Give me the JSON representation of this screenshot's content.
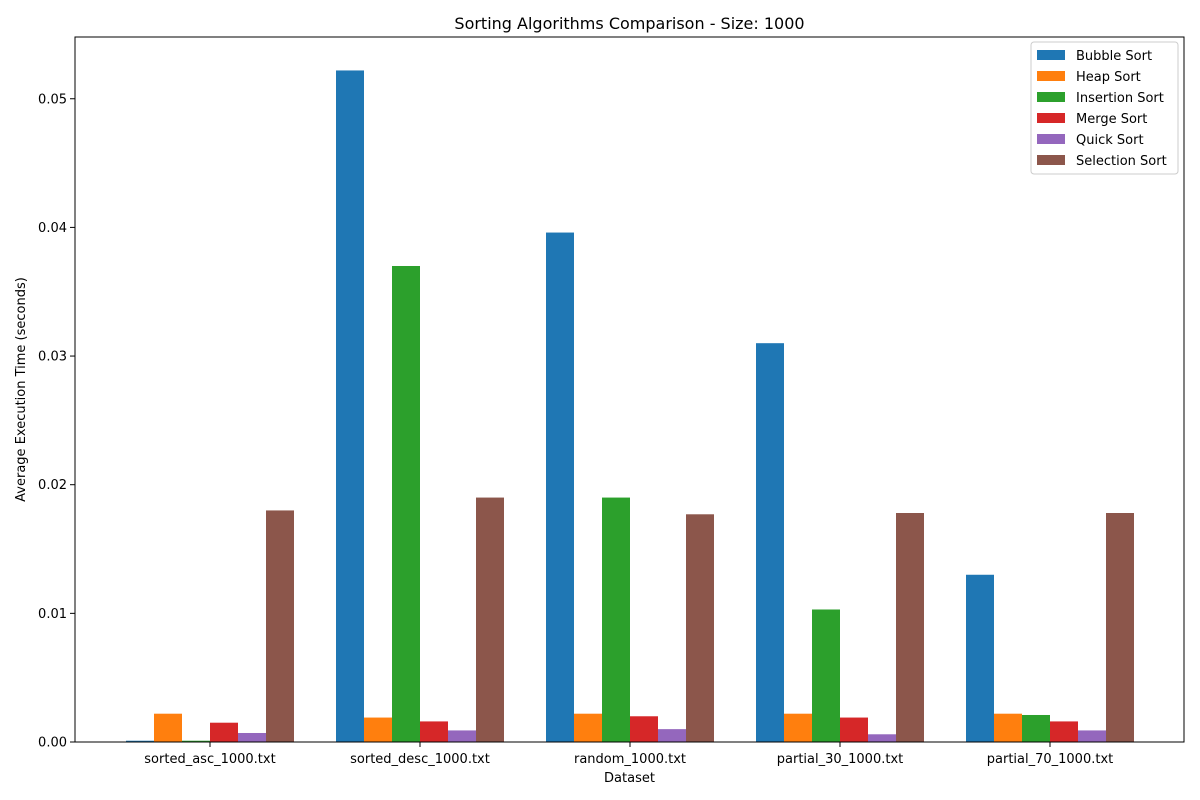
{
  "chart_data": {
    "type": "bar",
    "title": "Sorting Algorithms Comparison - Size: 1000",
    "xlabel": "Dataset",
    "ylabel": "Average Execution Time (seconds)",
    "categories": [
      "sorted_asc_1000.txt",
      "sorted_desc_1000.txt",
      "random_1000.txt",
      "partial_30_1000.txt",
      "partial_70_1000.txt"
    ],
    "series": [
      {
        "name": "Bubble Sort",
        "color": "#1f77b4",
        "values": [
          0.0001,
          0.0522,
          0.0396,
          0.031,
          0.013
        ]
      },
      {
        "name": "Heap Sort",
        "color": "#ff7f0e",
        "values": [
          0.0022,
          0.0019,
          0.0022,
          0.0022,
          0.0022
        ]
      },
      {
        "name": "Insertion Sort",
        "color": "#2ca02c",
        "values": [
          0.0001,
          0.037,
          0.019,
          0.0103,
          0.0021
        ]
      },
      {
        "name": "Merge Sort",
        "color": "#d62728",
        "values": [
          0.0015,
          0.0016,
          0.002,
          0.0019,
          0.0016
        ]
      },
      {
        "name": "Quick Sort",
        "color": "#9467bd",
        "values": [
          0.0007,
          0.0009,
          0.001,
          0.0006,
          0.0009
        ]
      },
      {
        "name": "Selection Sort",
        "color": "#8c564b",
        "values": [
          0.018,
          0.019,
          0.0177,
          0.0178,
          0.0178
        ]
      }
    ],
    "yticks": [
      0.0,
      0.01,
      0.02,
      0.03,
      0.04,
      0.05
    ],
    "ytick_labels": [
      "0.00",
      "0.01",
      "0.02",
      "0.03",
      "0.04",
      "0.05"
    ],
    "ylim": [
      0,
      0.0548
    ],
    "grid": false,
    "legend_position": "top-right"
  }
}
